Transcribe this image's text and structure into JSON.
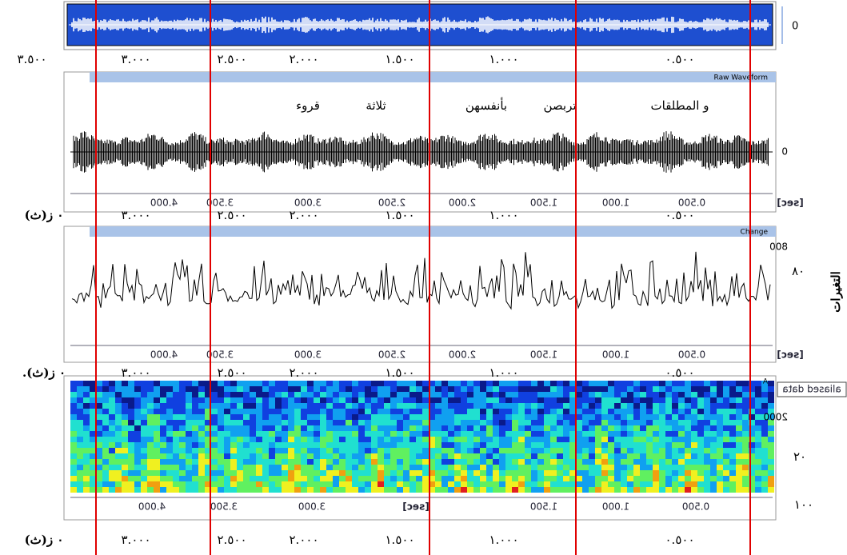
{
  "overview": {
    "zero_label": "0"
  },
  "time_rows": [
    {
      "unit": null,
      "labels": [
        "٣.٥٠٠",
        "٣.٠٠٠",
        "٢.٥٠٠",
        "٢.٠٠٠",
        "١.٥٠٠",
        "١.٠٠٠",
        "٠.٥٠٠"
      ]
    },
    {
      "unit": "٠ ز(ث)",
      "labels": [
        "٣.٠٠٠",
        "٢.٥٠٠",
        "٢.٠٠٠",
        "١.٥٠٠",
        "١.٠٠٠",
        "٠.٥٠٠"
      ]
    },
    {
      "unit": ".٠ ز(ث)",
      "labels": [
        "٣.٠٠٠",
        "٢.٥٠٠",
        "٢.٠٠٠",
        "١.٥٠٠",
        "١.٠٠٠",
        "٠.٥٠٠"
      ]
    },
    {
      "unit": "٠ ز(ث)",
      "labels": [
        "٣.٠٠٠",
        "٢.٥٠٠",
        "٢.٠٠٠",
        "١.٥٠٠",
        "١.٠٠٠",
        "٠.٥٠٠"
      ]
    }
  ],
  "panels": [
    {
      "title": "Raw Waveform",
      "words": [
        "و المطلقات",
        "تربصن",
        "بأنفسهن",
        "ثلاثة",
        "قروء"
      ],
      "y_label": "0",
      "axis_ticks": [
        "4.000",
        "3.500",
        "3.000",
        "2.500",
        "2.000",
        "1.500",
        "1.000",
        "0.500"
      ],
      "unit": "[sec]"
    },
    {
      "title": "Change",
      "y_label": "800",
      "side_labels": [
        "٨٠",
        "التغيرات"
      ],
      "axis_ticks": [
        "4.000",
        "3.500",
        "3.000",
        "2.500",
        "2.000",
        "1.500",
        "1.000",
        "0.500"
      ],
      "unit": "[sec]"
    },
    {
      "title": "A",
      "note": "aliased data",
      "y_label": "2000",
      "side_labels": [
        "٢٠",
        "١٠٠"
      ],
      "axis_ticks": [
        "4.000",
        "3.500",
        "3.000",
        "1.500",
        "1.000",
        "0.500"
      ],
      "unit": "[sec]"
    }
  ]
}
